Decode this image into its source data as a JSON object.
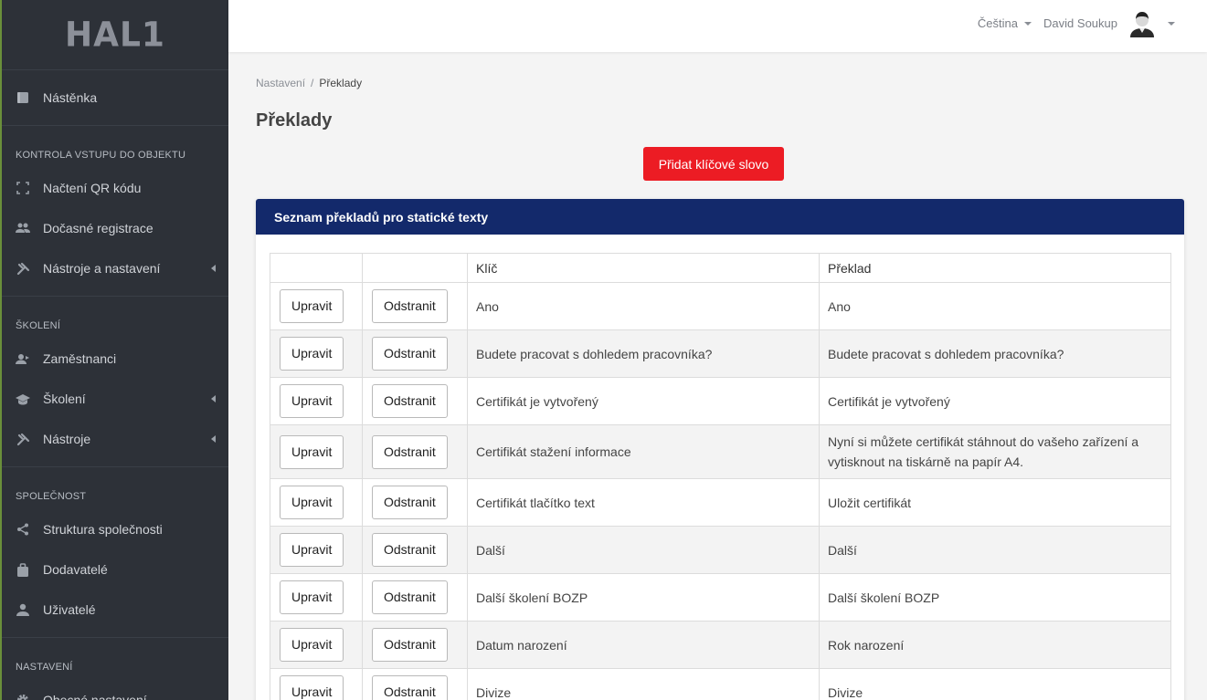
{
  "brand": {
    "logo_text": "HAL1"
  },
  "topbar": {
    "language": "Čeština",
    "user_name": "David Soukup"
  },
  "sidebar": {
    "items_top": [
      {
        "label": "Nástěnka",
        "icon": "dashboard-icon"
      }
    ],
    "sections": [
      {
        "heading": "Kontrola vstupu do objektu",
        "items": [
          {
            "label": "Načtení QR kódu",
            "icon": "qr-scan-icon"
          },
          {
            "label": "Dočasné registrace",
            "icon": "people-icon"
          },
          {
            "label": "Nástroje a nastavení",
            "icon": "tools-icon",
            "has_submenu": true
          }
        ]
      },
      {
        "heading": "Školení",
        "items": [
          {
            "label": "Zaměstnanci",
            "icon": "employees-icon"
          },
          {
            "label": "Školení",
            "icon": "graduation-cap-icon",
            "has_submenu": true
          },
          {
            "label": "Nástroje",
            "icon": "tools-icon",
            "has_submenu": true
          }
        ]
      },
      {
        "heading": "Společnost",
        "items": [
          {
            "label": "Struktura společnosti",
            "icon": "share-icon"
          },
          {
            "label": "Dodavatelé",
            "icon": "briefcase-icon"
          },
          {
            "label": "Uživatelé",
            "icon": "user-icon"
          }
        ]
      },
      {
        "heading": "Nastavení",
        "items": [
          {
            "label": "Obecné nastavení",
            "icon": "gear-icon"
          }
        ]
      }
    ]
  },
  "breadcrumb": {
    "parent": "Nastavení",
    "separator": "/",
    "current": "Překlady"
  },
  "page_title": "Překlady",
  "add_button_label": "Přidat klíčové slovo",
  "card_title": "Seznam překladů pro statické texty",
  "table": {
    "headers": [
      "",
      "",
      "Klíč",
      "Překlad"
    ],
    "edit_label": "Upravit",
    "delete_label": "Odstranit",
    "rows": [
      {
        "key": "Ano",
        "translation": "Ano"
      },
      {
        "key": "Budete pracovat s dohledem pracovníka?",
        "translation": "Budete pracovat s dohledem pracovníka?"
      },
      {
        "key": "Certifikát je vytvořený",
        "translation": "Certifikát je vytvořený"
      },
      {
        "key": "Certifikát stažení informace",
        "translation": "Nyní si můžete certifikát stáhnout do vašeho zařízení a vytisknout na tiskárně na papír A4."
      },
      {
        "key": "Certifikát tlačítko text",
        "translation": "Uložit certifikát"
      },
      {
        "key": "Další",
        "translation": "Další"
      },
      {
        "key": "Další školení BOZP",
        "translation": "Další školení BOZP"
      },
      {
        "key": "Datum narození",
        "translation": "Rok narození"
      },
      {
        "key": "Divize",
        "translation": "Divize"
      }
    ]
  },
  "colors": {
    "sidebar_bg": "#2d3138",
    "card_header_bg": "#13296b",
    "primary_button": "#ec1c24"
  }
}
